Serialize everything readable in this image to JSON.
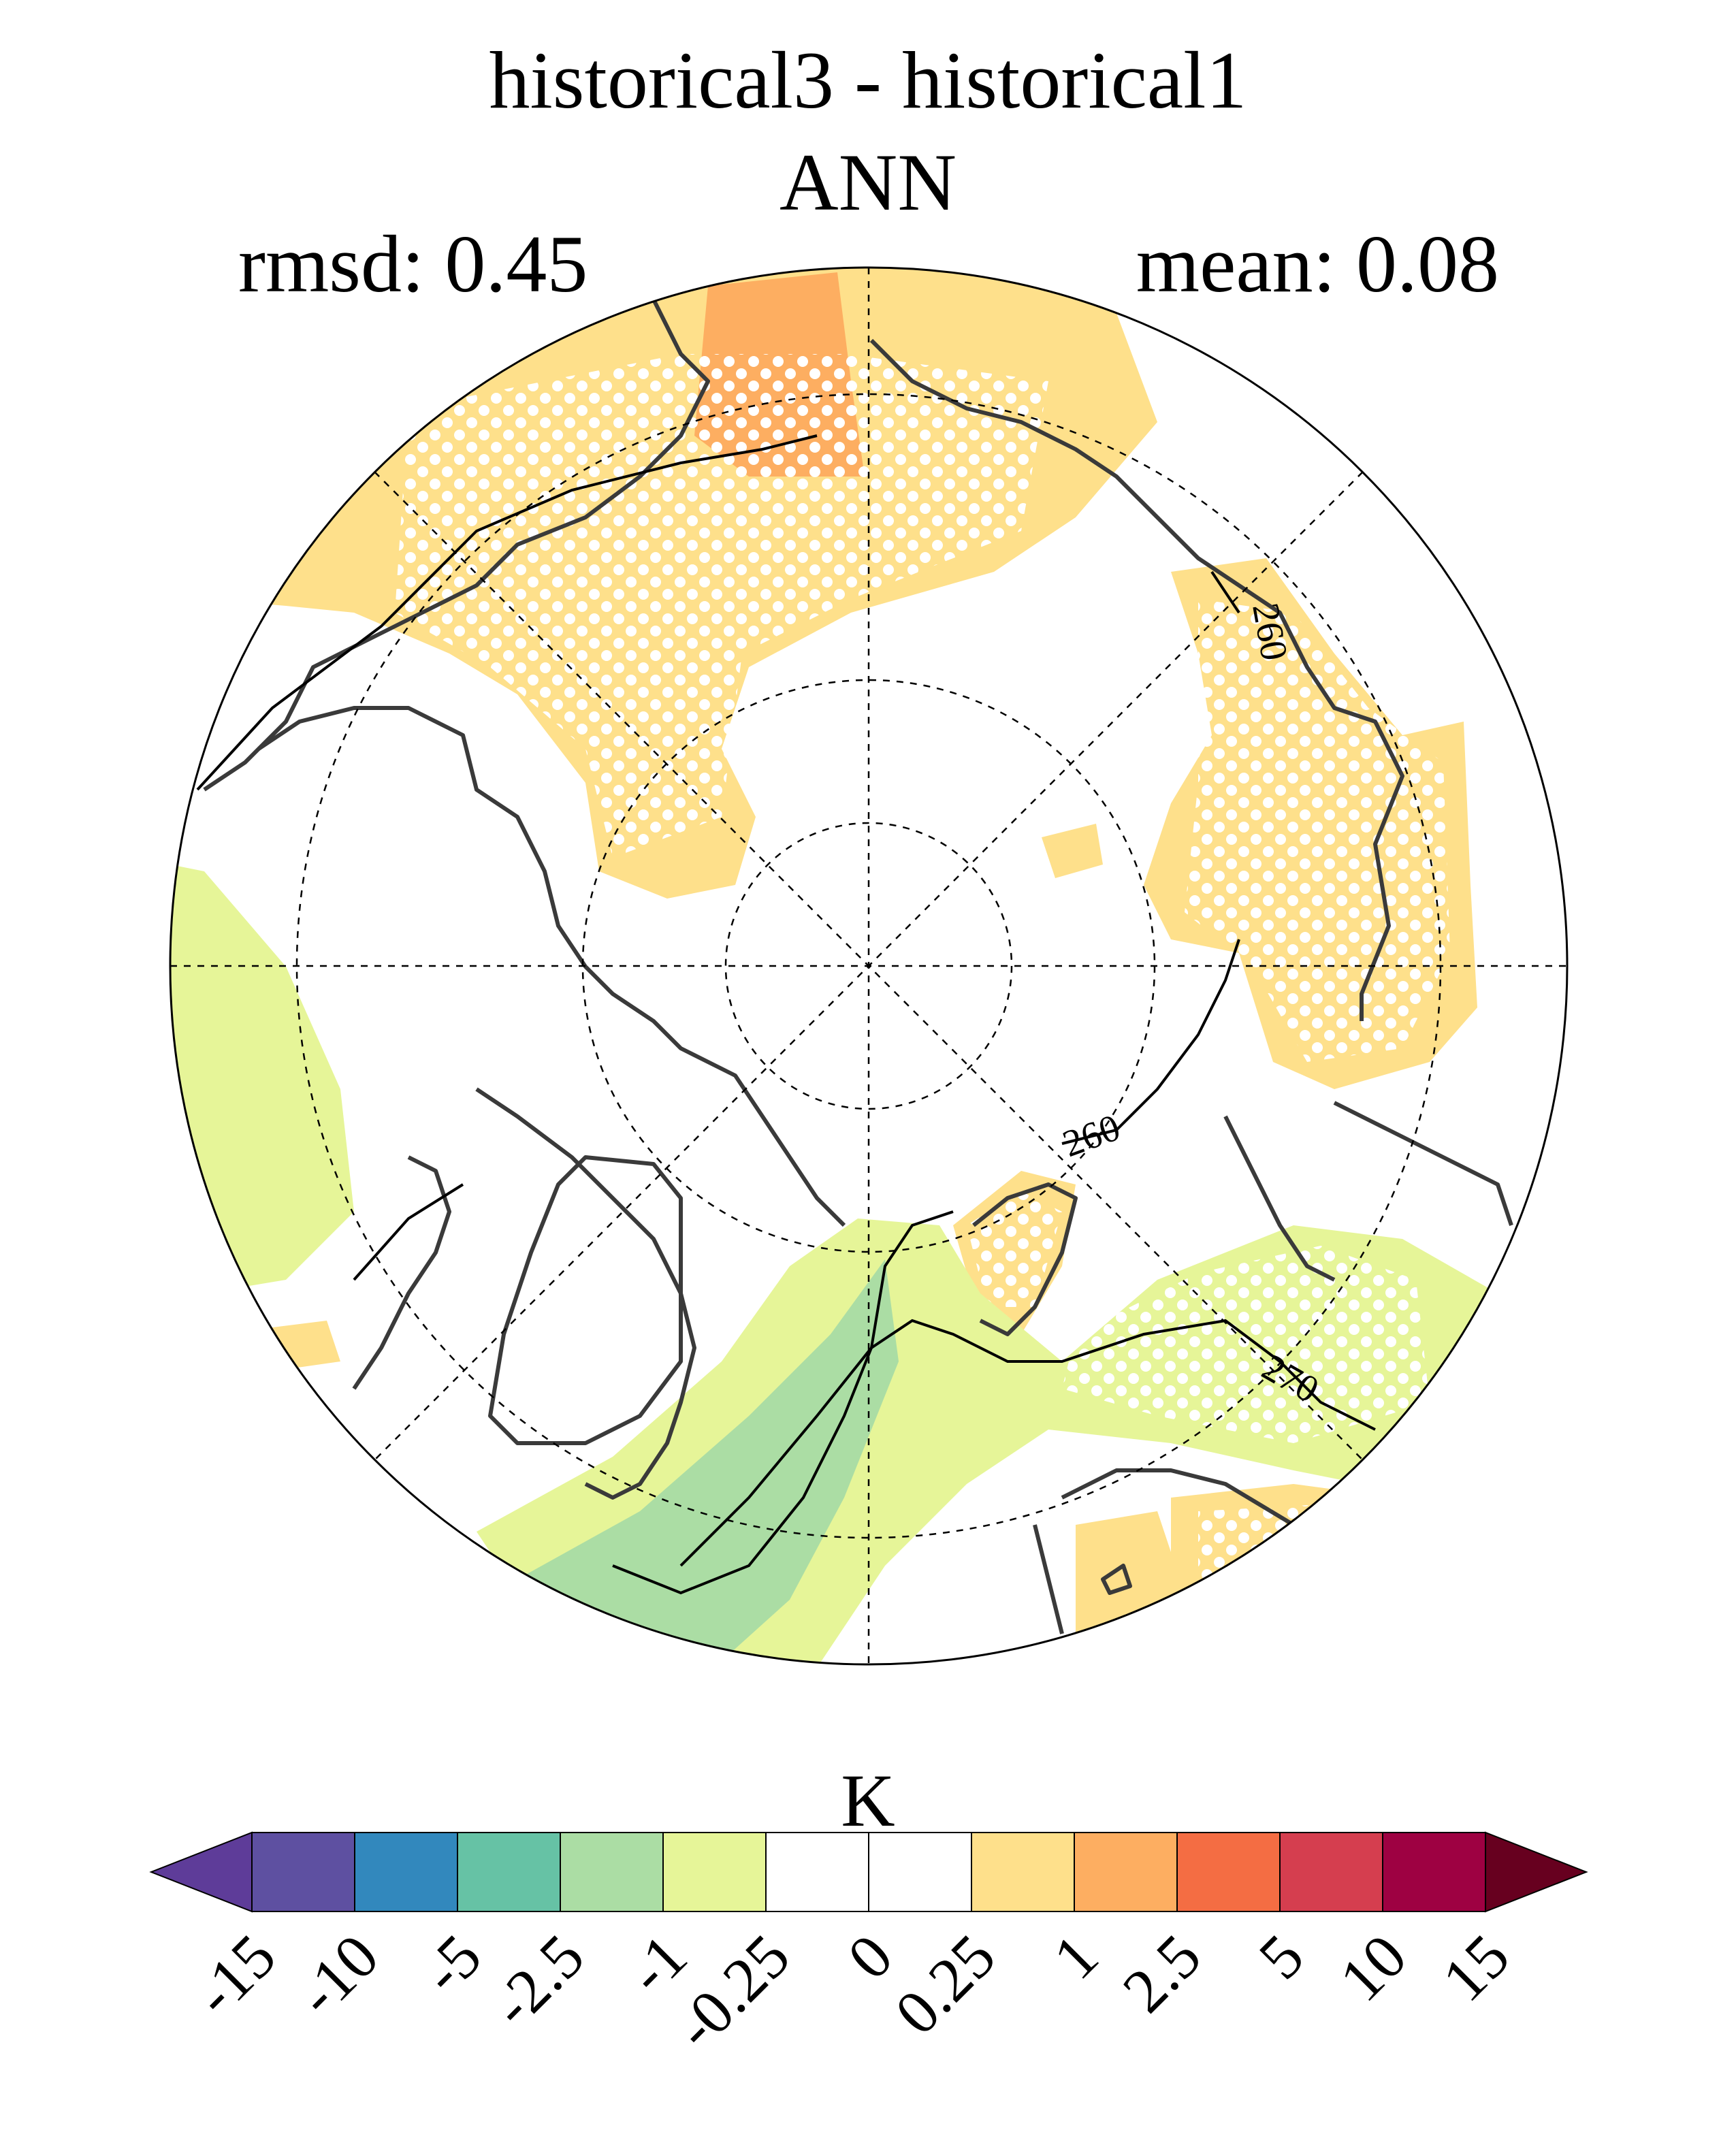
{
  "title": "historical3 - historical1",
  "season": "ANN",
  "rmsd_label": "rmsd: 0.45",
  "mean_label": "mean: 0.08",
  "contour_labels": [
    "260",
    "260",
    "270"
  ],
  "colorbar": {
    "unit": "K",
    "ticks": [
      "-15",
      "-10",
      "-5",
      "-2.5",
      "-1",
      "-0.25",
      "0",
      "0.25",
      "1",
      "2.5",
      "5",
      "10",
      "15"
    ],
    "colors": [
      "#5e3c99",
      "#5e50a1",
      "#3288bd",
      "#66c2a5",
      "#abdda4",
      "#e6f598",
      "#ffffff",
      "#ffffff",
      "#fee08b",
      "#fdae61",
      "#f46d43",
      "#d53e4f",
      "#9e0142",
      "#67001f"
    ],
    "under_color": "#5e3c99",
    "over_color": "#67001f"
  }
}
